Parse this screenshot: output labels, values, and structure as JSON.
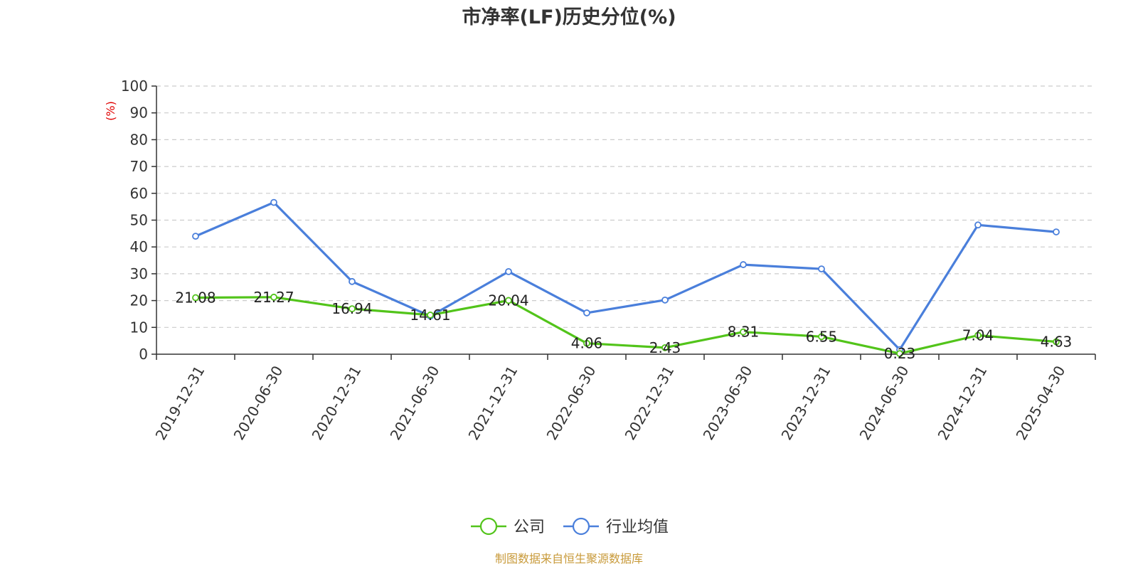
{
  "chart_data": {
    "type": "line",
    "title": "市净率(LF)历史分位(%)",
    "ylabel": "(%)",
    "ylim": [
      0,
      100
    ],
    "y_ticks": [
      0,
      10,
      20,
      30,
      40,
      50,
      60,
      70,
      80,
      90,
      100
    ],
    "grid": true,
    "legend_placement": "bottom-center",
    "categories": [
      "2019-12-31",
      "2020-06-30",
      "2020-12-31",
      "2021-06-30",
      "2021-12-31",
      "2022-06-30",
      "2022-12-31",
      "2023-06-30",
      "2023-12-31",
      "2024-06-30",
      "2024-12-31",
      "2025-04-30"
    ],
    "series": [
      {
        "name": "公司",
        "color": "#52c41a",
        "values": [
          21.08,
          21.27,
          16.94,
          14.61,
          20.04,
          4.06,
          2.43,
          8.31,
          6.55,
          0.23,
          7.04,
          4.63
        ],
        "labels": [
          "21.08",
          "21.27",
          "16.94",
          "14.61",
          "20.04",
          "4.06",
          "2.43",
          "8.31",
          "6.55",
          "0.23",
          "7.04",
          "4.63"
        ]
      },
      {
        "name": "行业均值",
        "color": "#4a7fdb",
        "values": [
          44.0,
          56.6,
          27.1,
          14.2,
          30.8,
          15.4,
          20.2,
          33.4,
          31.8,
          1.7,
          48.2,
          45.6
        ]
      }
    ],
    "source": "制图数据来自恒生聚源数据库",
    "colors": {
      "title": "#333333",
      "axis": "#333333",
      "grid": "#cccccc",
      "ylabel": "#e00000",
      "source": "#c89a3a"
    }
  }
}
